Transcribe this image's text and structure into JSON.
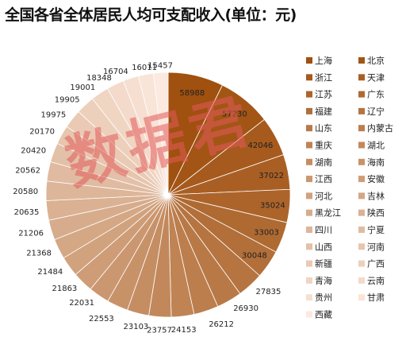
{
  "chart_data": {
    "type": "pie",
    "title": "全国各省全体居民人均可支配收入(单位：元)",
    "legend_position": "right",
    "slices": [
      {
        "label": "上海",
        "value": 58988
      },
      {
        "label": "北京",
        "value": 57230
      },
      {
        "label": "浙江",
        "value": 42046
      },
      {
        "label": "天津",
        "value": 37022
      },
      {
        "label": "江苏",
        "value": 35024
      },
      {
        "label": "广东",
        "value": 33003
      },
      {
        "label": "福建",
        "value": 30048
      },
      {
        "label": "辽宁",
        "value": 27835
      },
      {
        "label": "山东",
        "value": 26930
      },
      {
        "label": "内蒙古",
        "value": 26212
      },
      {
        "label": "重庆",
        "value": 24153
      },
      {
        "label": "湖北",
        "value": 23757
      },
      {
        "label": "湖南",
        "value": 23103
      },
      {
        "label": "海南",
        "value": 22553
      },
      {
        "label": "江西",
        "value": 22031
      },
      {
        "label": "安徽",
        "value": 21863
      },
      {
        "label": "河北",
        "value": 21484
      },
      {
        "label": "吉林",
        "value": 21368
      },
      {
        "label": "黑龙江",
        "value": 21206
      },
      {
        "label": "陕西",
        "value": 20635
      },
      {
        "label": "四川",
        "value": 20580
      },
      {
        "label": "宁夏",
        "value": 20562
      },
      {
        "label": "山西",
        "value": 20420
      },
      {
        "label": "河南",
        "value": 20170
      },
      {
        "label": "新疆",
        "value": 19975
      },
      {
        "label": "广西",
        "value": 19905
      },
      {
        "label": "青海",
        "value": 19001
      },
      {
        "label": "云南",
        "value": 18348
      },
      {
        "label": "贵州",
        "value": 16704
      },
      {
        "label": "甘肃",
        "value": 16011
      },
      {
        "label": "西藏",
        "value": 15457
      }
    ],
    "color_start": "#A0500F",
    "color_end": "#FCE9DF"
  },
  "watermark": {
    "text": "数据君"
  }
}
